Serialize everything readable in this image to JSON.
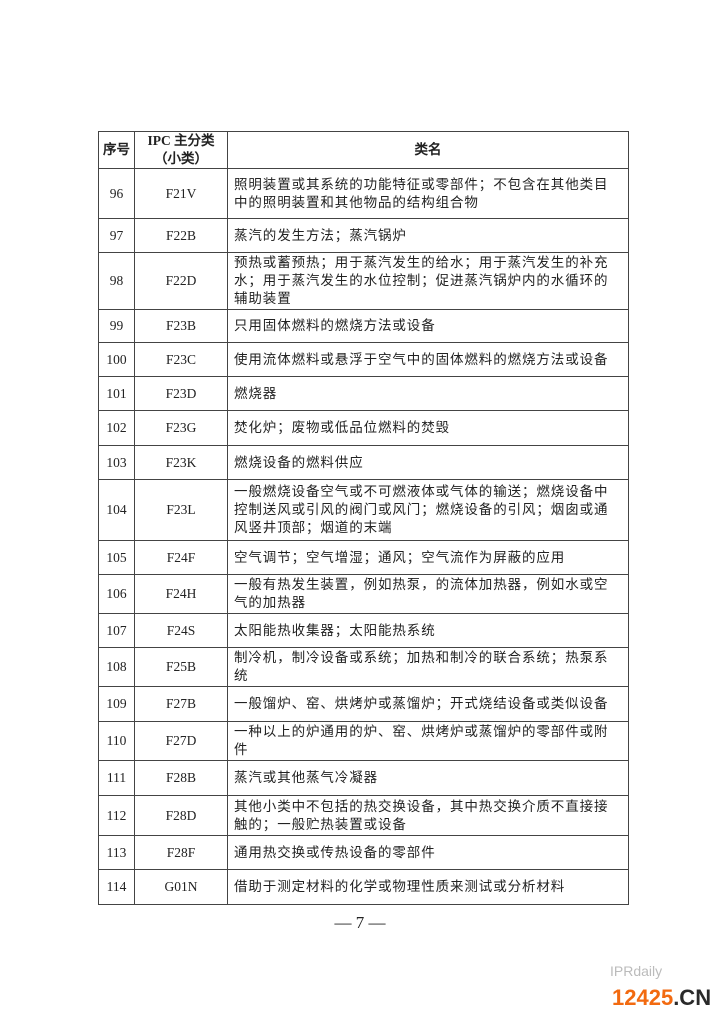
{
  "table": {
    "headers": [
      "序号",
      "IPC 主分类（小类）",
      "类名"
    ],
    "rows": [
      {
        "no": "96",
        "ipc": "F21V",
        "name": "照明装置或其系统的功能特征或零部件；不包含在其他类目中的照明装置和其他物品的结构组合物",
        "h": 50
      },
      {
        "no": "97",
        "ipc": "F22B",
        "name": "蒸汽的发生方法；蒸汽锅炉",
        "h": 34
      },
      {
        "no": "98",
        "ipc": "F22D",
        "name": "预热或蓄预热；用于蒸汽发生的给水；用于蒸汽发生的补充水；用于蒸汽发生的水位控制；促进蒸汽锅炉内的水循环的辅助装置",
        "h": 53
      },
      {
        "no": "99",
        "ipc": "F23B",
        "name": "只用固体燃料的燃烧方法或设备",
        "h": 33
      },
      {
        "no": "100",
        "ipc": "F23C",
        "name": "使用流体燃料或悬浮于空气中的固体燃料的燃烧方法或设备",
        "h": 34
      },
      {
        "no": "101",
        "ipc": "F23D",
        "name": "燃烧器",
        "h": 34
      },
      {
        "no": "102",
        "ipc": "F23G",
        "name": "焚化炉；废物或低品位燃料的焚毁",
        "h": 35
      },
      {
        "no": "103",
        "ipc": "F23K",
        "name": "燃烧设备的燃料供应",
        "h": 34
      },
      {
        "no": "104",
        "ipc": "F23L",
        "name": "一般燃烧设备空气或不可燃液体或气体的输送；燃烧设备中控制送风或引风的阀门或风门；燃烧设备的引风；烟囱或通风竖井顶部；烟道的末端",
        "h": 61
      },
      {
        "no": "105",
        "ipc": "F24F",
        "name": "空气调节；空气增湿；通风；空气流作为屏蔽的应用",
        "h": 34
      },
      {
        "no": "106",
        "ipc": "F24H",
        "name": "一般有热发生装置，例如热泵，的流体加热器，例如水或空气的加热器",
        "h": 37
      },
      {
        "no": "107",
        "ipc": "F24S",
        "name": "太阳能热收集器；太阳能热系统",
        "h": 34
      },
      {
        "no": "108",
        "ipc": "F25B",
        "name": "制冷机，制冷设备或系统；加热和制冷的联合系统；热泵系统",
        "h": 34
      },
      {
        "no": "109",
        "ipc": "F27B",
        "name": "一般馏炉、窑、烘烤炉或蒸馏炉；开式烧结设备或类似设备",
        "h": 35
      },
      {
        "no": "110",
        "ipc": "F27D",
        "name": "一种以上的炉通用的炉、窑、烘烤炉或蒸馏炉的零部件或附件",
        "h": 35
      },
      {
        "no": "111",
        "ipc": "F28B",
        "name": "蒸汽或其他蒸气冷凝器",
        "h": 35
      },
      {
        "no": "112",
        "ipc": "F28D",
        "name": "其他小类中不包括的热交换设备，其中热交换介质不直接接触的；一般贮热装置或设备",
        "h": 40
      },
      {
        "no": "113",
        "ipc": "F28F",
        "name": "通用热交换或传热设备的零部件",
        "h": 34
      },
      {
        "no": "114",
        "ipc": "G01N",
        "name": "借助于测定材料的化学或物理性质来测试或分析材料",
        "h": 35
      }
    ]
  },
  "page_number": "— 7 —",
  "watermark": {
    "faint": "IPRdaily",
    "brand_orange": "12425",
    "brand_dark": ".CN"
  }
}
